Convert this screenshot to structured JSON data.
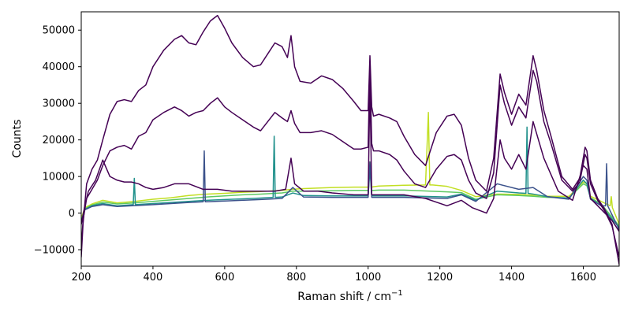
{
  "chart_data": {
    "type": "line",
    "title": "",
    "xlabel": "Raman shift / cm",
    "xlabel_superscript": "−1",
    "ylabel": "Counts",
    "xlim": [
      200,
      1700
    ],
    "ylim": [
      -14500,
      55000
    ],
    "x_ticks": [
      {
        "value": 200,
        "label": "200"
      },
      {
        "value": 400,
        "label": "400"
      },
      {
        "value": 600,
        "label": "600"
      },
      {
        "value": 800,
        "label": "800"
      },
      {
        "value": 1000,
        "label": "1000"
      },
      {
        "value": 1200,
        "label": "1200"
      },
      {
        "value": 1400,
        "label": "1400"
      },
      {
        "value": 1600,
        "label": "1600"
      }
    ],
    "y_ticks": [
      {
        "value": -10000,
        "label": "−10000"
      },
      {
        "value": 0,
        "label": "0"
      },
      {
        "value": 10000,
        "label": "10000"
      },
      {
        "value": 20000,
        "label": "20000"
      },
      {
        "value": 30000,
        "label": "30000"
      },
      {
        "value": 40000,
        "label": "40000"
      },
      {
        "value": 50000,
        "label": "50000"
      }
    ],
    "grid": false,
    "legend": "none",
    "colormap": "viridis",
    "series": [
      {
        "color": "#c2df23",
        "x": [
          200,
          210,
          230,
          260,
          300,
          350,
          400,
          450,
          500,
          550,
          600,
          650,
          700,
          760,
          790,
          820,
          900,
          960,
          1000,
          1005,
          1010,
          1015,
          1030,
          1100,
          1160,
          1168,
          1172,
          1180,
          1220,
          1260,
          1300,
          1360,
          1420,
          1460,
          1500,
          1560,
          1600,
          1610,
          1620,
          1650,
          1675,
          1678,
          1681,
          1700
        ],
        "y": [
          -1500,
          1500,
          2500,
          3500,
          2800,
          3200,
          3800,
          4200,
          4800,
          5200,
          5400,
          5700,
          5900,
          6200,
          6500,
          6700,
          7000,
          7100,
          7100,
          14000,
          7100,
          7200,
          7400,
          7600,
          7700,
          27500,
          7700,
          7700,
          7300,
          6200,
          4500,
          5200,
          5100,
          4900,
          4600,
          4600,
          8500,
          8000,
          4600,
          3200,
          2000,
          4500,
          1500,
          -3000
        ]
      },
      {
        "color": "#5ec962",
        "x": [
          200,
          210,
          230,
          260,
          300,
          350,
          400,
          450,
          500,
          550,
          600,
          650,
          700,
          760,
          790,
          820,
          900,
          960,
          1000,
          1005,
          1010,
          1015,
          1030,
          1100,
          1220,
          1260,
          1300,
          1360,
          1420,
          1460,
          1500,
          1560,
          1600,
          1610,
          1620,
          1650,
          1700
        ],
        "y": [
          -2000,
          1200,
          2200,
          3000,
          2500,
          2800,
          3200,
          3600,
          4000,
          4400,
          4700,
          5000,
          5200,
          5500,
          6000,
          6000,
          6100,
          6200,
          6200,
          13000,
          6200,
          6200,
          6300,
          6300,
          5800,
          5600,
          3800,
          5000,
          4800,
          4600,
          4300,
          4200,
          8000,
          7500,
          4200,
          2500,
          -3500
        ]
      },
      {
        "color": "#21918c",
        "x": [
          200,
          210,
          230,
          260,
          300,
          345,
          348,
          351,
          400,
          450,
          500,
          550,
          600,
          650,
          700,
          735,
          738,
          741,
          760,
          790,
          820,
          900,
          960,
          1000,
          1005,
          1010,
          1015,
          1030,
          1100,
          1220,
          1260,
          1300,
          1360,
          1420,
          1440,
          1443,
          1446,
          1460,
          1500,
          1560,
          1600,
          1610,
          1620,
          1650,
          1700
        ],
        "y": [
          -2500,
          1000,
          2000,
          2600,
          2000,
          2300,
          9500,
          2300,
          2600,
          2900,
          3200,
          3500,
          3700,
          3900,
          4100,
          4300,
          21000,
          4300,
          4400,
          5500,
          4800,
          4700,
          4700,
          4700,
          12000,
          4700,
          4700,
          4700,
          4700,
          4400,
          5200,
          3500,
          6000,
          5500,
          5400,
          23500,
          5400,
          5200,
          4500,
          4000,
          9000,
          8000,
          4000,
          2000,
          -4000
        ]
      },
      {
        "color": "#3b528b",
        "x": [
          200,
          210,
          230,
          260,
          300,
          400,
          500,
          540,
          543,
          546,
          600,
          700,
          760,
          790,
          820,
          900,
          960,
          1000,
          1005,
          1010,
          1015,
          1030,
          1100,
          1220,
          1260,
          1300,
          1360,
          1420,
          1460,
          1500,
          1560,
          1600,
          1610,
          1620,
          1650,
          1662,
          1665,
          1668,
          1700
        ],
        "y": [
          -3000,
          900,
          1800,
          2300,
          1800,
          2300,
          2900,
          3100,
          17000,
          3100,
          3300,
          3700,
          4000,
          7000,
          4400,
          4300,
          4300,
          4300,
          14000,
          4300,
          4300,
          4300,
          4300,
          4000,
          5000,
          3200,
          8000,
          6500,
          7000,
          4500,
          3800,
          10000,
          9000,
          3800,
          2000,
          2000,
          13500,
          2000,
          -4500
        ]
      },
      {
        "color": "#440154",
        "x": [
          200,
          205,
          215,
          230,
          245,
          260,
          280,
          300,
          320,
          340,
          360,
          380,
          400,
          430,
          460,
          480,
          500,
          520,
          540,
          560,
          580,
          600,
          620,
          650,
          680,
          700,
          720,
          740,
          760,
          775,
          785,
          795,
          810,
          840,
          870,
          900,
          930,
          960,
          980,
          1000,
          1005,
          1010,
          1015,
          1030,
          1060,
          1080,
          1100,
          1130,
          1160,
          1190,
          1220,
          1240,
          1260,
          1280,
          1300,
          1330,
          1350,
          1368,
          1380,
          1400,
          1420,
          1440,
          1460,
          1470,
          1490,
          1510,
          1540,
          1570,
          1590,
          1605,
          1610,
          1620,
          1640,
          1660,
          1680,
          1700
        ],
        "y": [
          -12000,
          -3000,
          8000,
          12000,
          14500,
          20000,
          27000,
          30500,
          31000,
          30500,
          33500,
          35000,
          40000,
          44500,
          47500,
          48500,
          46500,
          46000,
          49500,
          52500,
          54000,
          50500,
          46500,
          42500,
          40000,
          40500,
          43500,
          46500,
          45500,
          42500,
          48500,
          40000,
          36000,
          35500,
          37500,
          36500,
          34000,
          30500,
          28000,
          28000,
          43000,
          29000,
          26500,
          27000,
          26000,
          25000,
          21000,
          16000,
          13000,
          22000,
          26500,
          27000,
          24000,
          15000,
          9000,
          6000,
          15000,
          38000,
          33000,
          27000,
          32500,
          29500,
          43000,
          39000,
          28000,
          21000,
          10000,
          6500,
          9500,
          18000,
          17000,
          9000,
          4000,
          1000,
          -3000,
          -14000
        ]
      },
      {
        "color": "#440154",
        "x": [
          200,
          205,
          215,
          230,
          245,
          260,
          280,
          300,
          320,
          340,
          360,
          380,
          400,
          430,
          460,
          480,
          500,
          520,
          540,
          560,
          580,
          600,
          620,
          650,
          680,
          700,
          720,
          740,
          760,
          775,
          785,
          795,
          810,
          840,
          870,
          900,
          930,
          960,
          980,
          1000,
          1005,
          1010,
          1015,
          1030,
          1060,
          1080,
          1100,
          1130,
          1160,
          1190,
          1220,
          1240,
          1260,
          1280,
          1300,
          1330,
          1350,
          1368,
          1380,
          1400,
          1420,
          1440,
          1460,
          1470,
          1490,
          1510,
          1540,
          1570,
          1590,
          1605,
          1610,
          1620,
          1640,
          1660,
          1680,
          1700
        ],
        "y": [
          -10000,
          -2000,
          4000,
          6500,
          9000,
          13000,
          17000,
          18000,
          18500,
          17500,
          21000,
          22000,
          25500,
          27500,
          29000,
          28000,
          26500,
          27500,
          28000,
          30000,
          31500,
          29000,
          27500,
          25500,
          23500,
          22500,
          25000,
          27500,
          26000,
          25000,
          28000,
          24500,
          22000,
          22000,
          22500,
          21500,
          19500,
          17500,
          17500,
          18000,
          41000,
          19000,
          17000,
          17000,
          16000,
          14500,
          11500,
          8000,
          7000,
          12000,
          15500,
          16000,
          14500,
          9000,
          5500,
          4000,
          11000,
          35000,
          30000,
          24000,
          29000,
          26000,
          39000,
          36000,
          25000,
          19000,
          9000,
          6000,
          8500,
          16000,
          15000,
          8000,
          3500,
          500,
          -3500,
          -12000
        ]
      },
      {
        "color": "#440154",
        "x": [
          200,
          210,
          220,
          240,
          260,
          280,
          300,
          320,
          340,
          360,
          380,
          400,
          430,
          460,
          500,
          540,
          580,
          620,
          660,
          700,
          740,
          770,
          785,
          795,
          820,
          860,
          900,
          960,
          1000,
          1005,
          1010,
          1015,
          1030,
          1100,
          1160,
          1220,
          1260,
          1290,
          1330,
          1350,
          1368,
          1380,
          1400,
          1420,
          1440,
          1460,
          1490,
          1530,
          1570,
          1600,
          1610,
          1620,
          1650,
          1680,
          1700
        ],
        "y": [
          -3000,
          2000,
          6000,
          9000,
          14500,
          10000,
          9000,
          8500,
          8500,
          8000,
          7000,
          6500,
          7000,
          8000,
          8000,
          6500,
          6500,
          6000,
          6000,
          6000,
          6000,
          6500,
          15000,
          8000,
          6000,
          6000,
          5500,
          5000,
          5000,
          35000,
          5000,
          5000,
          5000,
          5000,
          4000,
          2000,
          3500,
          1500,
          0,
          4000,
          20000,
          15000,
          12000,
          16000,
          12000,
          25000,
          15000,
          6000,
          3500,
          13000,
          12000,
          4000,
          1000,
          -2000,
          -5000
        ]
      }
    ]
  }
}
